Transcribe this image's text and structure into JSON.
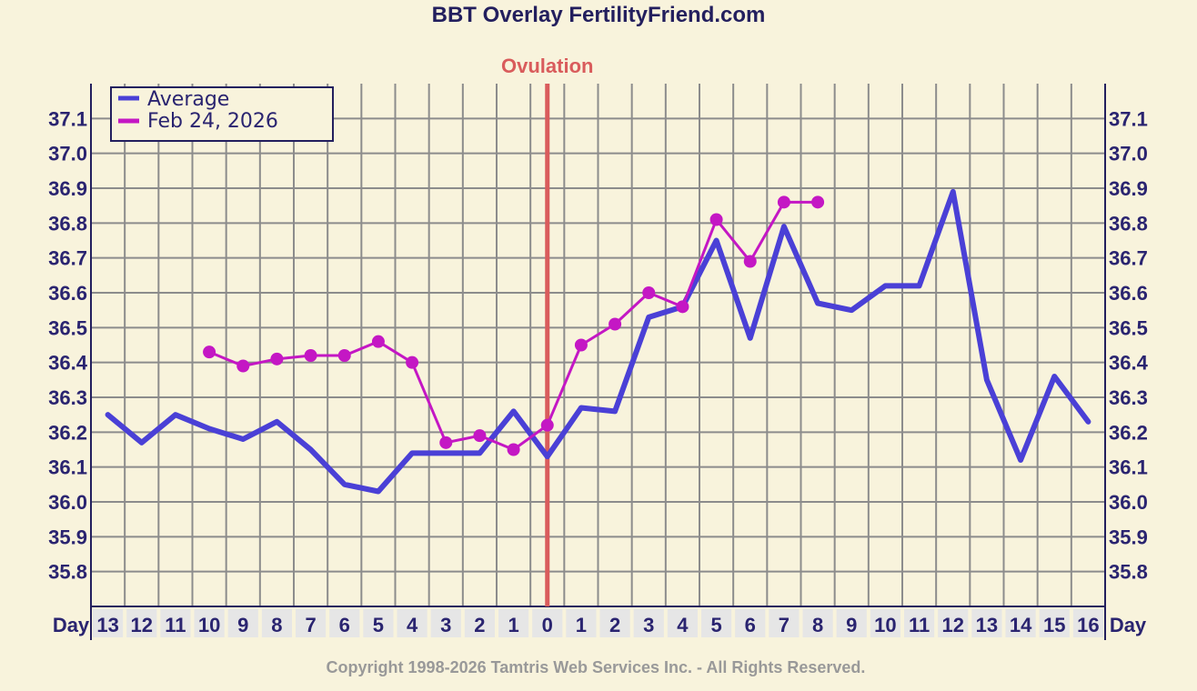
{
  "page": {
    "title": "BBT Overlay FertilityFriend.com",
    "ovulation_label": "Ovulation",
    "day_axis_label": "Day",
    "copyright": "Copyright 1998-2026 Tamtris Web Services Inc. - All Rights Reserved."
  },
  "colors": {
    "background": "#f8f3dc",
    "grid": "#8c8c8c",
    "axis": "#231f5e",
    "average": "#4a40d6",
    "cycle": "#c417c4",
    "ovulation": "#d95c5c",
    "day_cell": "#e6e6e6"
  },
  "chart_data": {
    "type": "line",
    "title": "BBT Overlay FertilityFriend.com",
    "xlabel": "Day",
    "ylabel": "",
    "ylim": [
      35.7,
      37.2
    ],
    "y_ticks": [
      "35.8",
      "35.9",
      "36.0",
      "36.1",
      "36.2",
      "36.3",
      "36.4",
      "36.5",
      "36.6",
      "36.7",
      "36.8",
      "36.9",
      "37.0",
      "37.1"
    ],
    "categories": [
      "13",
      "12",
      "11",
      "10",
      "9",
      "8",
      "7",
      "6",
      "5",
      "4",
      "3",
      "2",
      "1",
      "0",
      "1",
      "2",
      "3",
      "4",
      "5",
      "6",
      "7",
      "8",
      "9",
      "10",
      "11",
      "12",
      "13",
      "14",
      "15",
      "16"
    ],
    "ovulation_day_label": "0",
    "grid": true,
    "legend_position": "top-left",
    "series": [
      {
        "name": "Average",
        "color": "#4a40d6",
        "markers": false,
        "values": [
          36.25,
          36.17,
          36.25,
          36.21,
          36.18,
          36.23,
          36.15,
          36.05,
          36.03,
          36.14,
          36.14,
          36.14,
          36.26,
          36.13,
          36.27,
          36.26,
          36.53,
          36.56,
          36.75,
          36.47,
          36.79,
          36.57,
          36.55,
          36.62,
          36.62,
          36.89,
          36.35,
          36.12,
          36.36,
          36.23
        ]
      },
      {
        "name": "Feb 24, 2026",
        "color": "#c417c4",
        "markers": true,
        "values": [
          null,
          null,
          null,
          36.43,
          36.39,
          36.41,
          36.42,
          36.42,
          36.46,
          36.4,
          36.17,
          36.19,
          36.15,
          36.22,
          36.45,
          36.51,
          36.6,
          36.56,
          36.81,
          36.69,
          36.86,
          36.86,
          null,
          null,
          null,
          null,
          null,
          null,
          null,
          null
        ]
      }
    ]
  }
}
